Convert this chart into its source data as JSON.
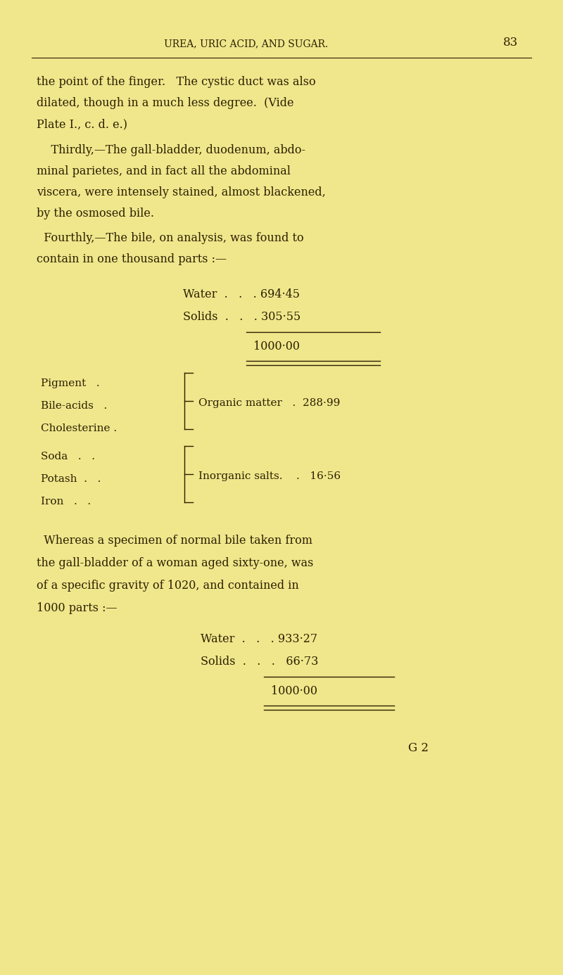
{
  "bg_color": "#F0E68C",
  "text_color": "#2C2000",
  "page_width": 8.0,
  "page_height": 13.86,
  "header": "UREA, URIC ACID, AND SUGAR.",
  "header_page_num": "83",
  "para1_lines": [
    "the point of the finger.   The cystic duct was also",
    "dilated, though in a much less degree.  (Vide",
    "Plate I., c. d. e.)"
  ],
  "para2_lines": [
    "    Thirdly,—The gall-bladder, duodenum, abdo-",
    "minal parietes, and in fact all the abdominal",
    "viscera, were intensely stained, almost blackened,",
    "by the osmosed bile."
  ],
  "para3_lines": [
    "  Fourthly,—The bile, on analysis, was found to",
    "contain in one thousand parts :—"
  ],
  "table1_water": "Water  .   .   . 694·45",
  "table1_solids": "Solids  .   .   . 305·55",
  "table1_total": "1000·00",
  "bracket1_left": [
    "Pigment   .",
    "Bile-acids   .",
    "Cholesterine ."
  ],
  "bracket1_right_label": "Organic matter   .  288·99",
  "bracket2_left": [
    "Soda   .   .",
    "Potash  .   .",
    "Iron   .   ."
  ],
  "bracket2_right_label": "Inorganic salts.    .   16·56",
  "para4_lines": [
    "  Whereas a specimen of normal bile taken from",
    "the gall-bladder of a woman aged sixty-one, was",
    "of a specific gravity of 1020, and contained in",
    "1000 parts :—"
  ],
  "table2_water": "Water  .   .   . 933·27",
  "table2_solids": "Solids  .   .   .   66·73",
  "table2_total": "1000·00",
  "footer": "G 2"
}
